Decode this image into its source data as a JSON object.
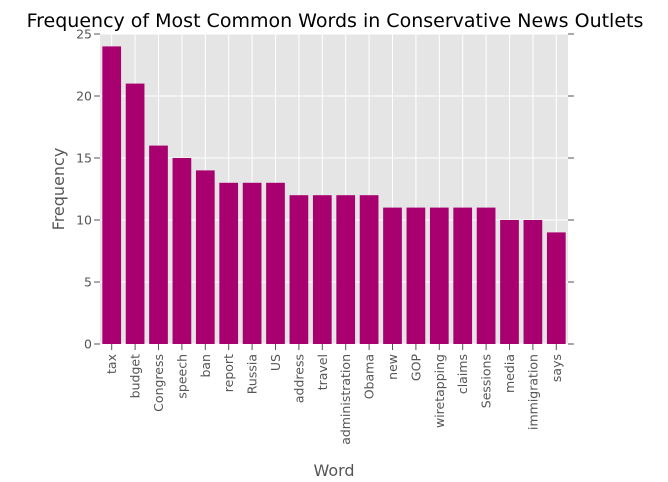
{
  "chart_data": {
    "type": "bar",
    "title": "Frequency of Most Common Words in Conservative News Outlets",
    "xlabel": "Word",
    "ylabel": "Frequency",
    "ylim": [
      0,
      25
    ],
    "yticks": [
      "0",
      "5",
      "10",
      "15",
      "20",
      "25"
    ],
    "grid": true,
    "categories": [
      "tax",
      "budget",
      "Congress",
      "speech",
      "ban",
      "report",
      "Russia",
      "US",
      "address",
      "travel",
      "administration",
      "Obama",
      "new",
      "GOP",
      "wiretapping",
      "claims",
      "Sessions",
      "media",
      "immigration",
      "says"
    ],
    "values": [
      24,
      21,
      16,
      15,
      14,
      13,
      13,
      13,
      12,
      12,
      12,
      12,
      11,
      11,
      11,
      11,
      11,
      10,
      10,
      9
    ],
    "colors": {
      "bar": "#a8006e",
      "plot_background": "#e5e5e5",
      "grid": "#ffffff",
      "tick_text": "#555555"
    }
  }
}
